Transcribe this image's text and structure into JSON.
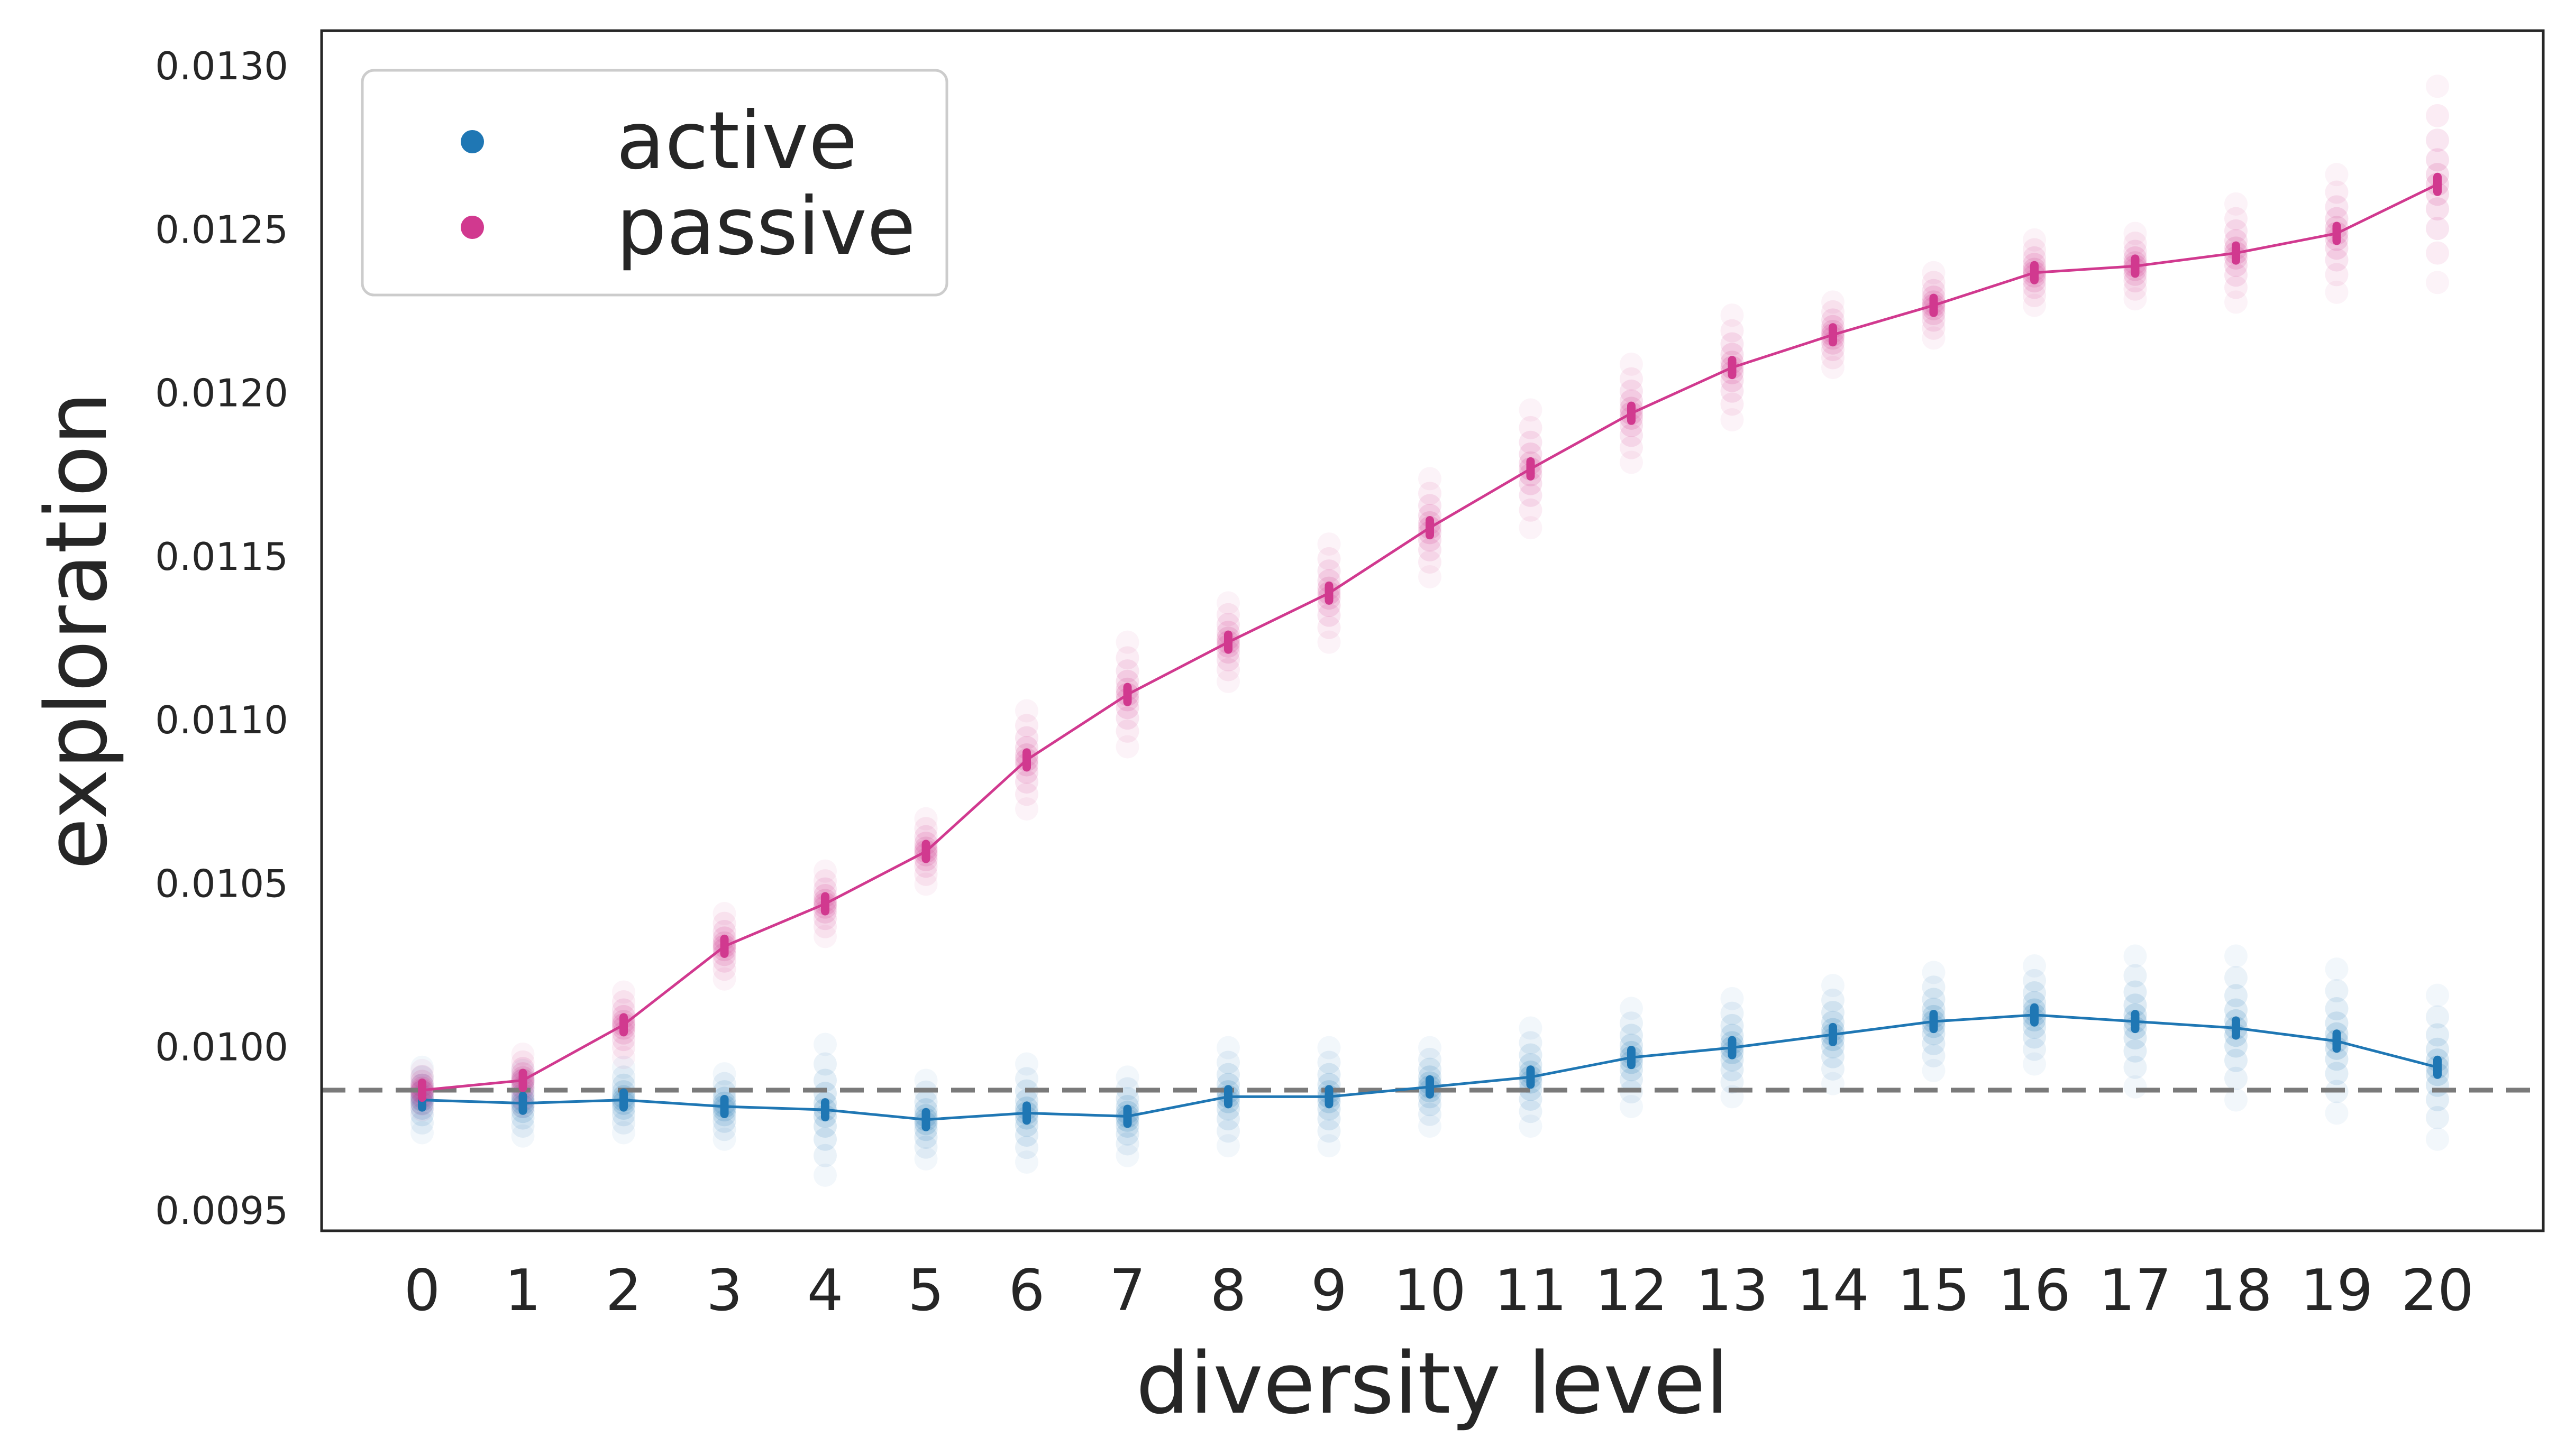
{
  "chart_data": {
    "type": "line",
    "xlabel": "diversity level",
    "ylabel": "exploration",
    "x": [
      0,
      1,
      2,
      3,
      4,
      5,
      6,
      7,
      8,
      9,
      10,
      11,
      12,
      13,
      14,
      15,
      16,
      17,
      18,
      19,
      20
    ],
    "x_tick_labels": [
      "0",
      "1",
      "2",
      "3",
      "4",
      "5",
      "6",
      "7",
      "8",
      "9",
      "10",
      "11",
      "12",
      "13",
      "14",
      "15",
      "16",
      "17",
      "18",
      "19",
      "20"
    ],
    "ylim": [
      0.00944,
      0.01311
    ],
    "y_ticks": [
      0.0095,
      0.01,
      0.0105,
      0.011,
      0.0115,
      0.012,
      0.0125,
      0.013
    ],
    "y_tick_labels": [
      "0.0095",
      "0.0100",
      "0.0105",
      "0.0110",
      "0.0115",
      "0.0120",
      "0.0125",
      "0.0130"
    ],
    "reference_line": {
      "y": 0.00987,
      "style": "dashed",
      "color": "#7a7a7a"
    },
    "grid": false,
    "legend_position": "top-left",
    "series": [
      {
        "name": "active",
        "color": "#1f77b4",
        "values": [
          0.00984,
          0.00983,
          0.00984,
          0.00982,
          0.00981,
          0.00978,
          0.0098,
          0.00979,
          0.00985,
          0.00985,
          0.00988,
          0.00991,
          0.00997,
          0.01,
          0.01004,
          0.01008,
          0.0101,
          0.01008,
          0.01006,
          0.01002,
          0.00994
        ],
        "spread": [
          0.0001,
          0.0001,
          0.0001,
          0.0001,
          0.0002,
          0.00012,
          0.00015,
          0.00012,
          0.00015,
          0.00015,
          0.00012,
          0.00015,
          0.00015,
          0.00015,
          0.00015,
          0.00015,
          0.00015,
          0.0002,
          0.00022,
          0.00022,
          0.00022
        ]
      },
      {
        "name": "passive",
        "color": "#d1398f",
        "values": [
          0.00987,
          0.0099,
          0.01007,
          0.01031,
          0.01044,
          0.0106,
          0.01088,
          0.01108,
          0.01124,
          0.01139,
          0.01159,
          0.01177,
          0.01194,
          0.01208,
          0.01218,
          0.01227,
          0.01237,
          0.01239,
          0.01243,
          0.01249,
          0.01264
        ],
        "spread": [
          6e-05,
          8e-05,
          0.0001,
          0.0001,
          0.0001,
          0.0001,
          0.00015,
          0.00016,
          0.00012,
          0.00015,
          0.00015,
          0.00018,
          0.00015,
          0.00016,
          0.0001,
          0.0001,
          0.0001,
          0.0001,
          0.00015,
          0.00018,
          0.0003
        ]
      }
    ]
  }
}
